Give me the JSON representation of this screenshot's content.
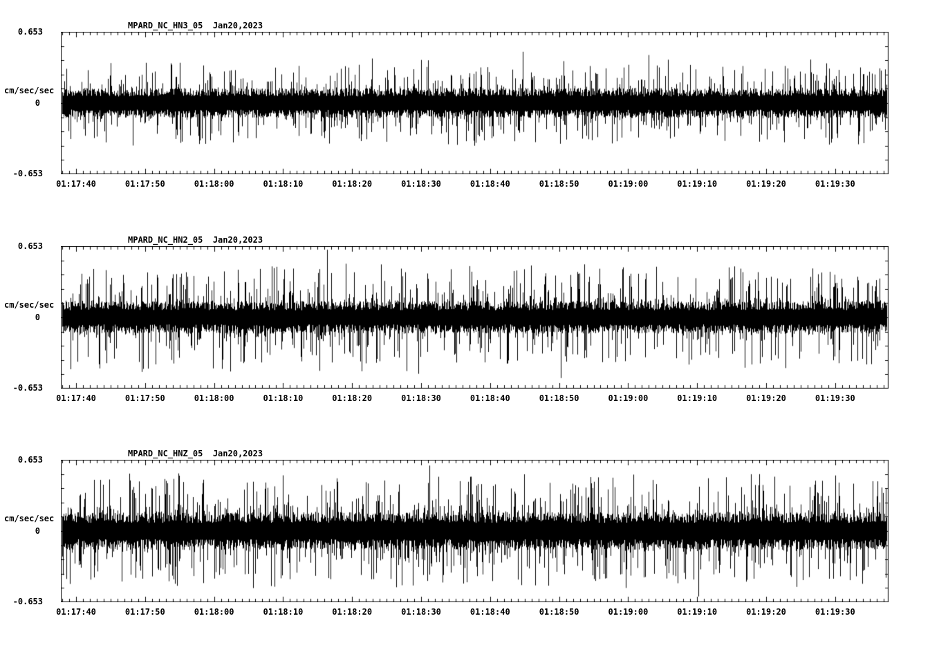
{
  "page": {
    "background_color": "#ffffff",
    "trace_color": "#000000",
    "description": "Three-channel strong-motion seismogram noise record display"
  },
  "chart_data": [
    {
      "type": "line",
      "chart_kind": "seismogram-waveform",
      "title": "MPARD_NC_HN3_05  Jan20,2023",
      "station": "MPARD_NC_HN3_05",
      "date": "Jan20,2023",
      "ylabel": "cm/sec/sec",
      "ylim": [
        -0.653,
        0.653
      ],
      "ytick_labels": {
        "top": "0.653",
        "zero": "0",
        "bottom": "-0.653"
      },
      "xtick_labels": [
        "01:17:40",
        "01:17:50",
        "01:18:00",
        "01:18:10",
        "01:18:20",
        "01:18:30",
        "01:18:40",
        "01:18:50",
        "01:19:00",
        "01:19:10",
        "01:19:20",
        "01:19:30"
      ],
      "x_seconds_per_major_tick": 10,
      "x_seconds_per_minor_tick": 1,
      "grid": false,
      "legend": false,
      "waveform": {
        "kind": "continuous-random-noise",
        "dense_amplitude": 0.12,
        "spike_amplitude": 0.4,
        "spike_rate": 0.3,
        "seed": 11,
        "notable_spikes": [
          {
            "x_frac": 0.558,
            "value": 0.47
          },
          {
            "x_frac": 0.71,
            "value": 0.44
          },
          {
            "x_frac": 0.012,
            "value": -0.33
          }
        ]
      }
    },
    {
      "type": "line",
      "chart_kind": "seismogram-waveform",
      "title": "MPARD_NC_HN2_05  Jan20,2023",
      "station": "MPARD_NC_HN2_05",
      "date": "Jan20,2023",
      "ylabel": "cm/sec/sec",
      "ylim": [
        -0.653,
        0.653
      ],
      "ytick_labels": {
        "top": "0.653",
        "zero": "0",
        "bottom": "-0.653"
      },
      "xtick_labels": [
        "01:17:40",
        "01:17:50",
        "01:18:00",
        "01:18:10",
        "01:18:20",
        "01:18:30",
        "01:18:40",
        "01:18:50",
        "01:19:00",
        "01:19:10",
        "01:19:20",
        "01:19:30"
      ],
      "x_seconds_per_major_tick": 10,
      "x_seconds_per_minor_tick": 1,
      "grid": false,
      "legend": false,
      "waveform": {
        "kind": "continuous-random-noise",
        "dense_amplitude": 0.13,
        "spike_amplitude": 0.5,
        "spike_rate": 0.35,
        "seed": 22,
        "notable_spikes": [
          {
            "x_frac": 0.322,
            "value": 0.62
          },
          {
            "x_frac": 0.098,
            "value": -0.5
          },
          {
            "x_frac": 0.105,
            "value": -0.47
          },
          {
            "x_frac": 0.055,
            "value": -0.42
          }
        ]
      }
    },
    {
      "type": "line",
      "chart_kind": "seismogram-waveform",
      "title": "MPARD_NC_HNZ_05  Jan20,2023",
      "station": "MPARD_NC_HNZ_05",
      "date": "Jan20,2023",
      "ylabel": "cm/sec/sec",
      "ylim": [
        -0.653,
        0.653
      ],
      "ytick_labels": {
        "top": "0.653",
        "zero": "0",
        "bottom": "-0.653"
      },
      "xtick_labels": [
        "01:17:40",
        "01:17:50",
        "01:18:00",
        "01:18:10",
        "01:18:20",
        "01:18:30",
        "01:18:40",
        "01:18:50",
        "01:19:00",
        "01:19:10",
        "01:19:20",
        "01:19:30"
      ],
      "x_seconds_per_major_tick": 10,
      "x_seconds_per_minor_tick": 1,
      "grid": false,
      "legend": false,
      "waveform": {
        "kind": "continuous-random-noise",
        "dense_amplitude": 0.15,
        "spike_amplitude": 0.52,
        "spike_rate": 0.38,
        "seed": 33,
        "notable_spikes": [
          {
            "x_frac": 0.445,
            "value": 0.6
          },
          {
            "x_frac": 0.77,
            "value": -0.6
          },
          {
            "x_frac": 0.56,
            "value": 0.52
          }
        ]
      }
    }
  ]
}
